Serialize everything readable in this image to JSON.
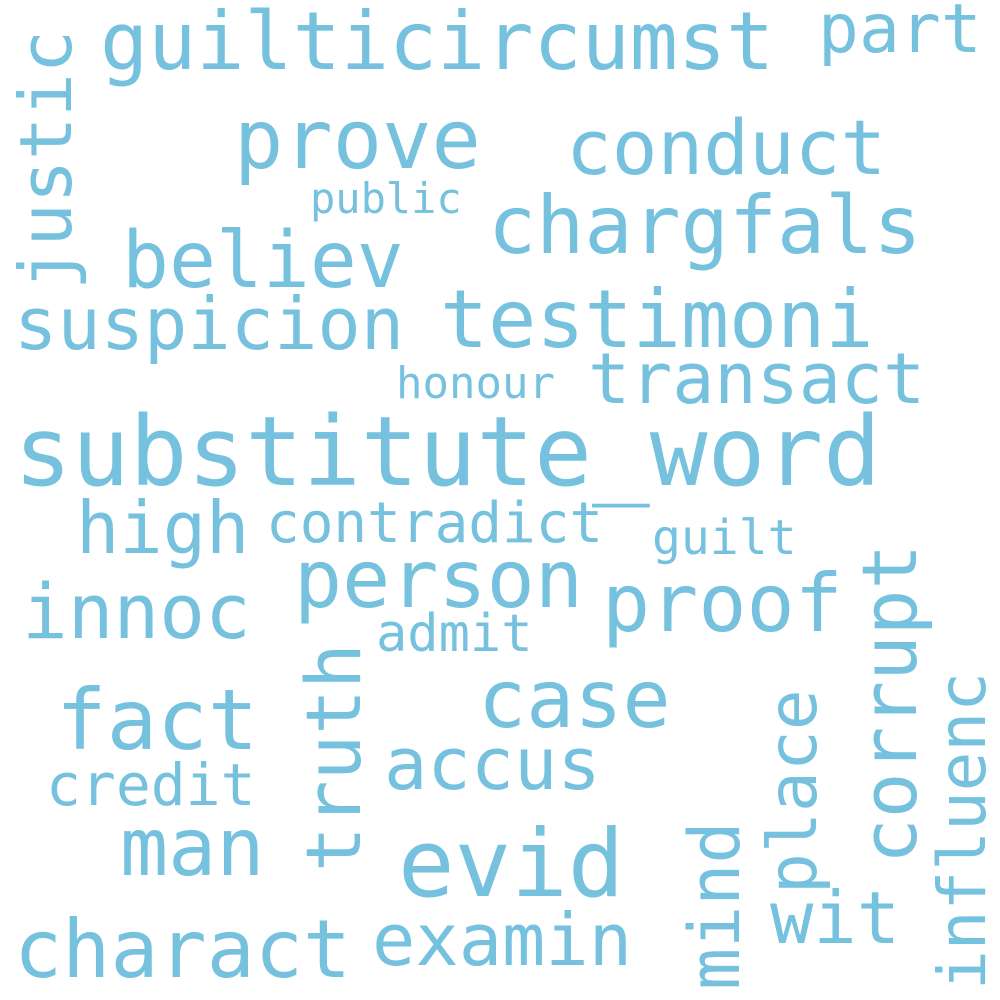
{
  "color": "#76c1de",
  "background": "#ffffff",
  "words": {
    "substitute_word": "substitute_word",
    "guilticircumst": "guilticircumst",
    "part": "part",
    "prove": "prove",
    "conduct": "conduct",
    "public": "public",
    "chargfals": "chargfals",
    "believ": "believ",
    "suspicion": "suspicion",
    "testimoni": "testimoni",
    "transact": "transact",
    "honour": "honour",
    "high": "high",
    "contradict": "contradict",
    "guilt": "guilt",
    "person": "person",
    "innoc": "innoc",
    "proof": "proof",
    "admit": "admit",
    "case": "case",
    "fact": "fact",
    "accus": "accus",
    "credit": "credit",
    "man": "man",
    "evid": "evid",
    "wit": "wit",
    "charact": "charact",
    "examin": "examin",
    "justic": "justic",
    "truth": "truth",
    "mind": "mind",
    "place": "place",
    "corrupt": "corrupt",
    "influenc": "influenc"
  }
}
